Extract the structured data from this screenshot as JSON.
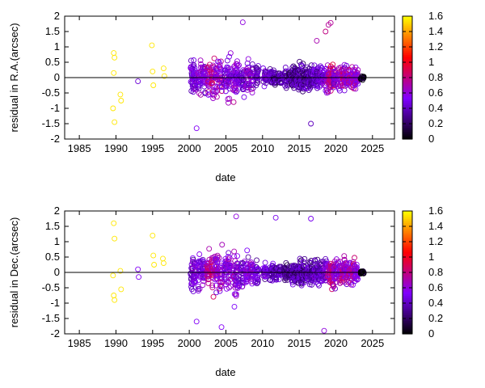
{
  "chart_data": [
    {
      "type": "scatter",
      "panel": "top",
      "xlabel": "date",
      "ylabel": "residual in R.A.(arcsec)",
      "xlim": [
        1983,
        2028
      ],
      "ylim": [
        -2,
        2
      ],
      "xticks": [
        "1985",
        "1990",
        "1995",
        "2000",
        "2005",
        "2010",
        "2015",
        "2020",
        "2025"
      ],
      "yticks": [
        "-2",
        "-1.5",
        "-1",
        "-0.5",
        "0",
        "0.5",
        "1",
        "1.5",
        "2"
      ],
      "colorbar": {
        "label": "",
        "range": [
          0,
          1.6
        ],
        "ticks": [
          "0",
          "0.2",
          "0.4",
          "0.6",
          "0.8",
          "1",
          "1.2",
          "1.4",
          "1.6"
        ],
        "palette": [
          "#000000",
          "#7f00ff",
          "#ff0000",
          "#ffff00"
        ]
      },
      "zero_line": true,
      "marker": "open-circle",
      "series": [
        {
          "points": [
            [
              1989.7,
              0.8,
              1.55
            ],
            [
              1989.8,
              0.65,
              1.55
            ],
            [
              1989.7,
              0.15,
              1.55
            ],
            [
              1989.6,
              -1.0,
              1.55
            ],
            [
              1989.8,
              -1.45,
              1.55
            ],
            [
              1990.6,
              -0.55,
              1.55
            ],
            [
              1990.7,
              -0.75,
              1.55
            ],
            [
              1993.0,
              -0.12,
              0.45
            ],
            [
              1994.9,
              1.05,
              1.55
            ],
            [
              1995.0,
              0.2,
              1.55
            ],
            [
              1995.1,
              -0.25,
              1.55
            ],
            [
              1996.5,
              0.3,
              1.55
            ],
            [
              1996.6,
              0.05,
              1.55
            ],
            [
              2001.0,
              -1.65,
              0.55
            ],
            [
              2007.3,
              1.8,
              0.6
            ],
            [
              2019.0,
              1.72,
              0.75
            ],
            [
              2019.3,
              1.78,
              0.75
            ],
            [
              2017.4,
              1.2,
              0.7
            ],
            [
              2018.6,
              1.5,
              0.8
            ],
            [
              2016.6,
              -1.5,
              0.4
            ]
          ]
        }
      ]
    },
    {
      "type": "scatter",
      "panel": "bottom",
      "xlabel": "date",
      "ylabel": "residual in Dec.(arcsec)",
      "xlim": [
        1983,
        2028
      ],
      "ylim": [
        -2,
        2
      ],
      "xticks": [
        "1985",
        "1990",
        "1995",
        "2000",
        "2005",
        "2010",
        "2015",
        "2020",
        "2025"
      ],
      "yticks": [
        "-2",
        "-1.5",
        "-1",
        "-0.5",
        "0",
        "0.5",
        "1",
        "1.5",
        "2"
      ],
      "colorbar": {
        "label": "",
        "range": [
          0,
          1.6
        ],
        "ticks": [
          "0",
          "0.2",
          "0.4",
          "0.6",
          "0.8",
          "1",
          "1.2",
          "1.4",
          "1.6"
        ],
        "palette": [
          "#000000",
          "#7f00ff",
          "#ff0000",
          "#ffff00"
        ]
      },
      "zero_line": true,
      "marker": "open-circle",
      "series": [
        {
          "points": [
            [
              1989.7,
              1.6,
              1.55
            ],
            [
              1989.8,
              1.1,
              1.55
            ],
            [
              1989.6,
              -0.1,
              1.55
            ],
            [
              1989.7,
              -0.75,
              1.55
            ],
            [
              1989.8,
              -0.9,
              1.55
            ],
            [
              1990.6,
              0.05,
              1.55
            ],
            [
              1990.7,
              -0.55,
              1.55
            ],
            [
              1993.0,
              0.1,
              0.55
            ],
            [
              1993.1,
              -0.15,
              0.55
            ],
            [
              1995.0,
              1.2,
              1.55
            ],
            [
              1995.1,
              0.55,
              1.55
            ],
            [
              1995.2,
              0.25,
              1.55
            ],
            [
              1996.4,
              0.45,
              1.55
            ],
            [
              1996.5,
              0.3,
              1.55
            ],
            [
              2001.0,
              -1.6,
              0.55
            ],
            [
              2004.4,
              -1.78,
              0.55
            ],
            [
              2006.4,
              1.82,
              0.6
            ],
            [
              2011.8,
              1.78,
              0.5
            ],
            [
              2018.4,
              -1.9,
              0.6
            ],
            [
              2016.6,
              1.75,
              0.5
            ]
          ]
        }
      ]
    }
  ]
}
